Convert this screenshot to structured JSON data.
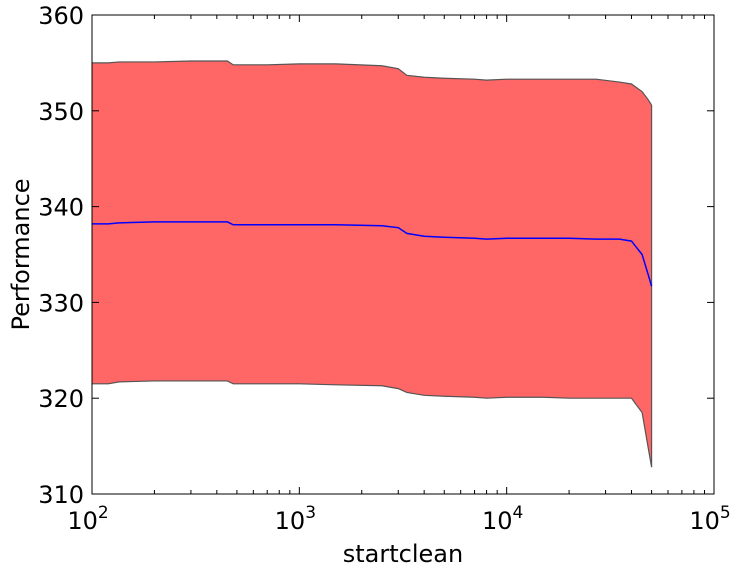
{
  "chart_data": {
    "type": "area",
    "xlabel": "startclean",
    "ylabel": "Performance",
    "xscale": "log",
    "xlim": [
      100,
      100000
    ],
    "ylim": [
      310,
      360
    ],
    "grid": false,
    "legend": "none",
    "x_ticks": [
      {
        "value": 100,
        "base": "10",
        "exp": "2"
      },
      {
        "value": 1000,
        "base": "10",
        "exp": "3"
      },
      {
        "value": 10000,
        "base": "10",
        "exp": "4"
      },
      {
        "value": 100000,
        "base": "10",
        "exp": "5"
      }
    ],
    "y_ticks": [
      {
        "value": 310,
        "label": "310"
      },
      {
        "value": 320,
        "label": "320"
      },
      {
        "value": 330,
        "label": "330"
      },
      {
        "value": 340,
        "label": "340"
      },
      {
        "value": 350,
        "label": "350"
      },
      {
        "value": 360,
        "label": "360"
      }
    ],
    "x": [
      100,
      120,
      135,
      200,
      300,
      450,
      480,
      700,
      1000,
      1500,
      2500,
      3000,
      3300,
      4000,
      5000,
      7000,
      8000,
      10000,
      15000,
      20000,
      27000,
      35000,
      40000,
      45000,
      48000,
      50000
    ],
    "series": [
      {
        "role": "mean",
        "color": "#0000ff",
        "values": [
          338.2,
          338.2,
          338.3,
          338.4,
          338.4,
          338.4,
          338.1,
          338.1,
          338.1,
          338.1,
          338.0,
          337.8,
          337.2,
          336.9,
          336.8,
          336.7,
          336.6,
          336.7,
          336.7,
          336.7,
          336.6,
          336.6,
          336.4,
          335.0,
          333.0,
          331.7
        ]
      },
      {
        "role": "upper",
        "color": "#555555",
        "values": [
          355.0,
          355.0,
          355.1,
          355.1,
          355.2,
          355.2,
          354.8,
          354.8,
          354.9,
          354.9,
          354.7,
          354.4,
          353.7,
          353.5,
          353.4,
          353.3,
          353.2,
          353.3,
          353.3,
          353.3,
          353.3,
          353.0,
          352.8,
          352.0,
          351.2,
          350.6
        ]
      },
      {
        "role": "lower",
        "color": "#555555",
        "values": [
          321.5,
          321.5,
          321.7,
          321.8,
          321.8,
          321.8,
          321.5,
          321.5,
          321.5,
          321.4,
          321.3,
          321.0,
          320.6,
          320.3,
          320.2,
          320.1,
          320.0,
          320.1,
          320.1,
          320.0,
          320.0,
          320.0,
          320.0,
          318.5,
          315.0,
          312.8
        ]
      }
    ],
    "band_color": "#ff6666"
  }
}
